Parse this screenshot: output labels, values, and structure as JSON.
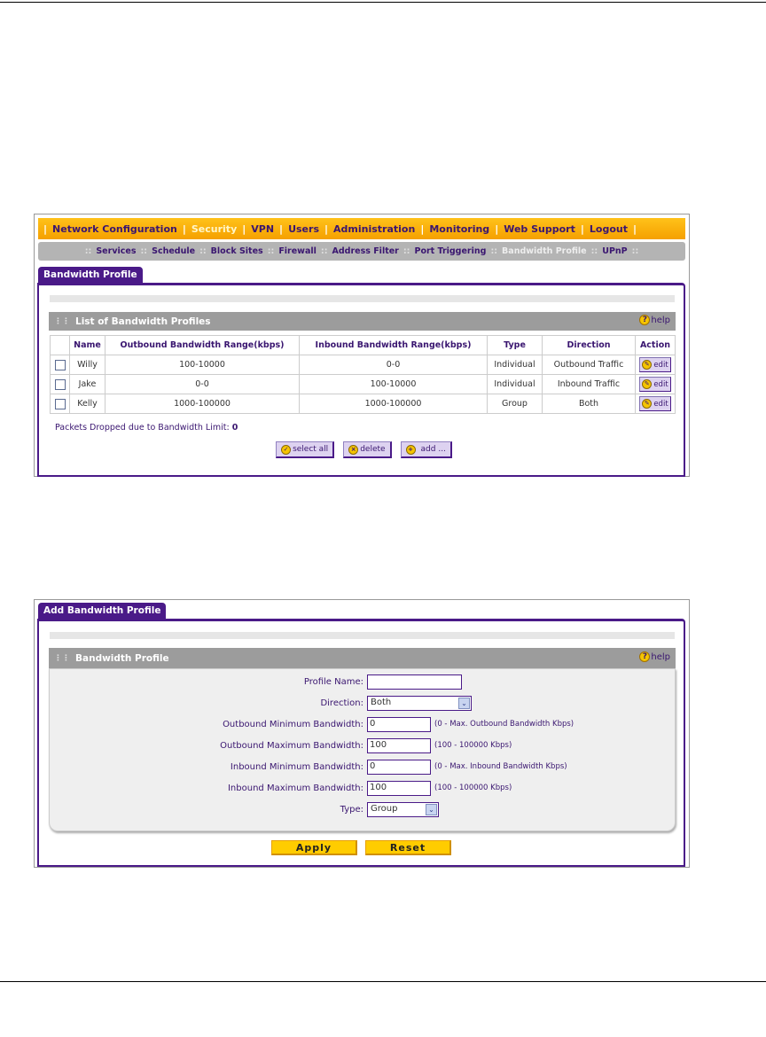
{
  "nav": {
    "items": [
      "Network Configuration",
      "Security",
      "VPN",
      "Users",
      "Administration",
      "Monitoring",
      "Web Support",
      "Logout"
    ],
    "active": "Security"
  },
  "subnav": {
    "items": [
      "Services",
      "Schedule",
      "Block Sites",
      "Firewall",
      "Address Filter",
      "Port Triggering",
      "Bandwidth Profile",
      "UPnP"
    ],
    "active": "Bandwidth Profile"
  },
  "list_screen": {
    "tab": "Bandwidth Profile",
    "section_title": "List of Bandwidth Profiles",
    "help": "help",
    "columns": [
      "",
      "Name",
      "Outbound Bandwidth Range(kbps)",
      "Inbound Bandwidth Range(kbps)",
      "Type",
      "Direction",
      "Action"
    ],
    "rows": [
      {
        "name": "Willy",
        "outbound": "100-10000",
        "inbound": "0-0",
        "type": "Individual",
        "direction": "Outbound Traffic",
        "action": "edit"
      },
      {
        "name": "Jake",
        "outbound": "0-0",
        "inbound": "100-10000",
        "type": "Individual",
        "direction": "Inbound Traffic",
        "action": "edit"
      },
      {
        "name": "Kelly",
        "outbound": "1000-100000",
        "inbound": "1000-100000",
        "type": "Group",
        "direction": "Both",
        "action": "edit"
      }
    ],
    "packets_label": "Packets Dropped due to Bandwidth Limit:",
    "packets_value": "0",
    "buttons": {
      "select_all": "select all",
      "delete": "delete",
      "add": "add ..."
    }
  },
  "add_screen": {
    "tab": "Add Bandwidth Profile",
    "section_title": "Bandwidth Profile",
    "help": "help",
    "fields": {
      "profile_name": {
        "label": "Profile Name:",
        "value": ""
      },
      "direction": {
        "label": "Direction:",
        "value": "Both"
      },
      "out_min": {
        "label": "Outbound Minimum Bandwidth:",
        "value": "0",
        "hint": "(0 - Max. Outbound Bandwidth Kbps)"
      },
      "out_max": {
        "label": "Outbound Maximum Bandwidth:",
        "value": "100",
        "hint": "(100 - 100000 Kbps)"
      },
      "in_min": {
        "label": "Inbound Minimum Bandwidth:",
        "value": "0",
        "hint": "(0 - Max. Inbound Bandwidth Kbps)"
      },
      "in_max": {
        "label": "Inbound Maximum Bandwidth:",
        "value": "100",
        "hint": "(100 - 100000 Kbps)"
      },
      "type": {
        "label": "Type:",
        "value": "Group"
      }
    },
    "apply": "Apply",
    "reset": "Reset"
  }
}
